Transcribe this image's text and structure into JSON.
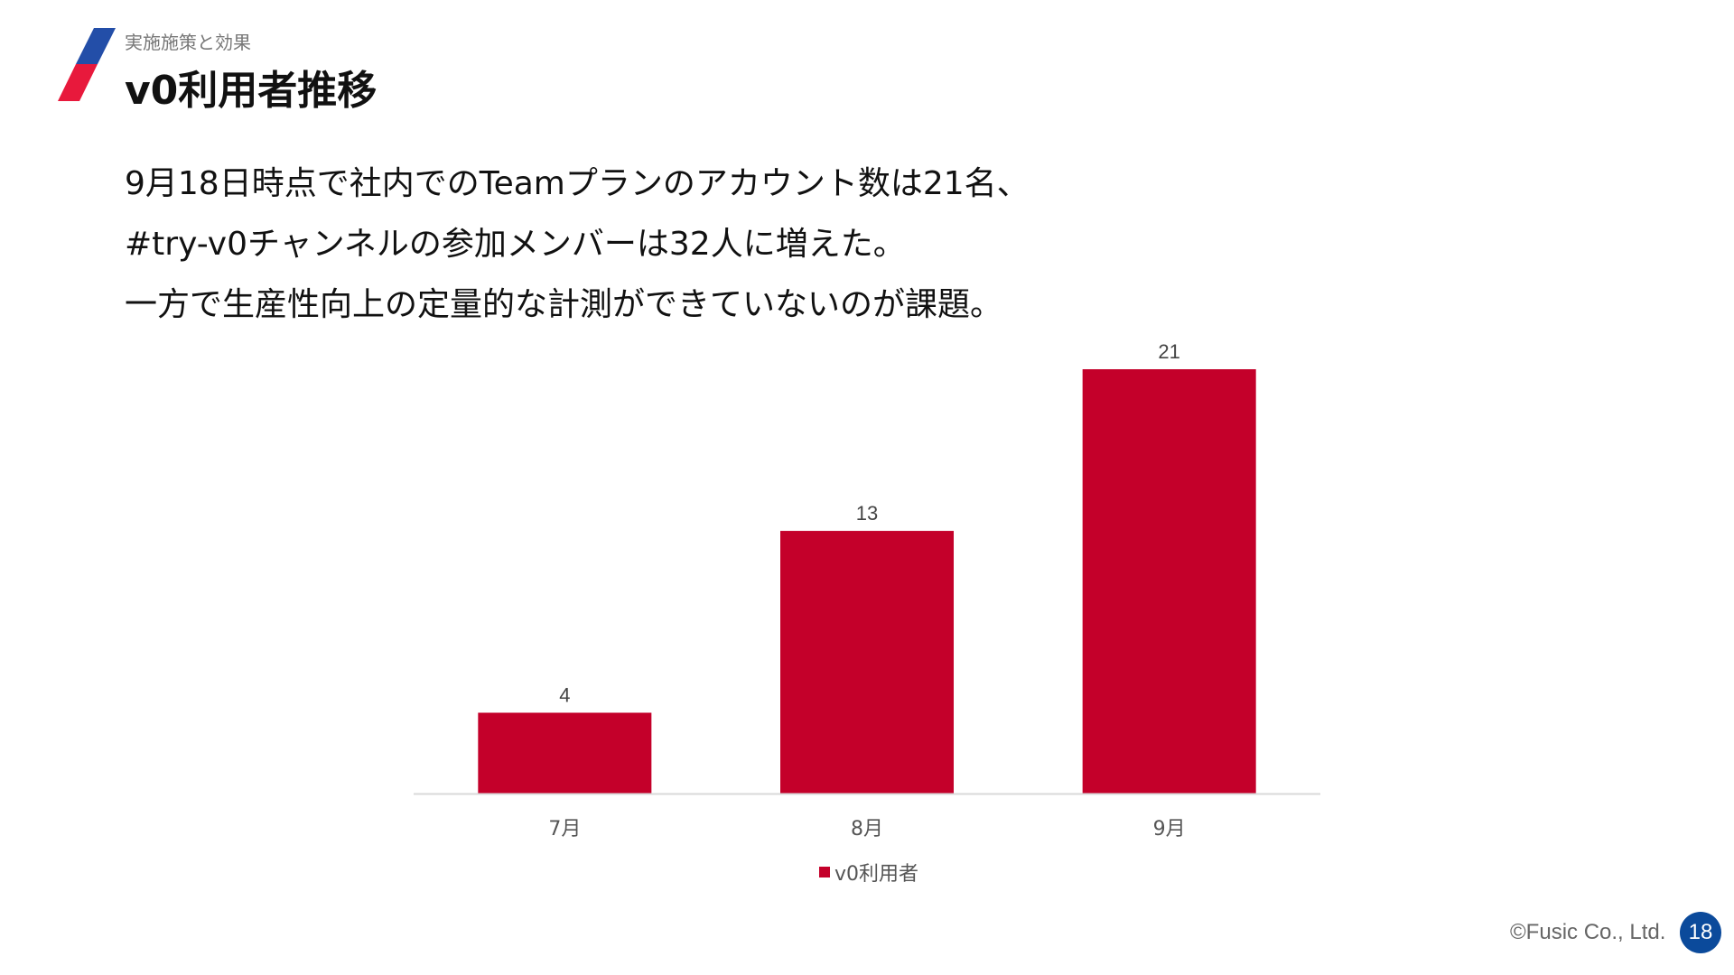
{
  "header": {
    "section": "実施施策と効果",
    "title": "v0利用者推移"
  },
  "body_lines": [
    "9月18日時点で社内でのTeamプランのアカウント数は21名、",
    "#try-v0チャンネルの参加メンバーは32人に増えた。",
    "一方で生産性向上の定量的な計測ができていないのが課題。"
  ],
  "chart_data": {
    "type": "bar",
    "categories": [
      "7月",
      "8月",
      "9月"
    ],
    "series": [
      {
        "name": "v0利用者",
        "values": [
          4,
          13,
          21
        ]
      }
    ],
    "data_labels": [
      "4",
      "13",
      "21"
    ],
    "legend": {
      "position": "bottom",
      "label": "v0利用者"
    },
    "grid": false,
    "ylim": [
      0,
      21
    ],
    "bar_color": "#C4002A"
  },
  "footer": {
    "copyright": "©Fusic Co., Ltd.",
    "page_number": "18"
  },
  "colors": {
    "accent_blue": "#234EA8",
    "accent_red": "#E8193C",
    "page_badge": "#0B4A9B"
  }
}
